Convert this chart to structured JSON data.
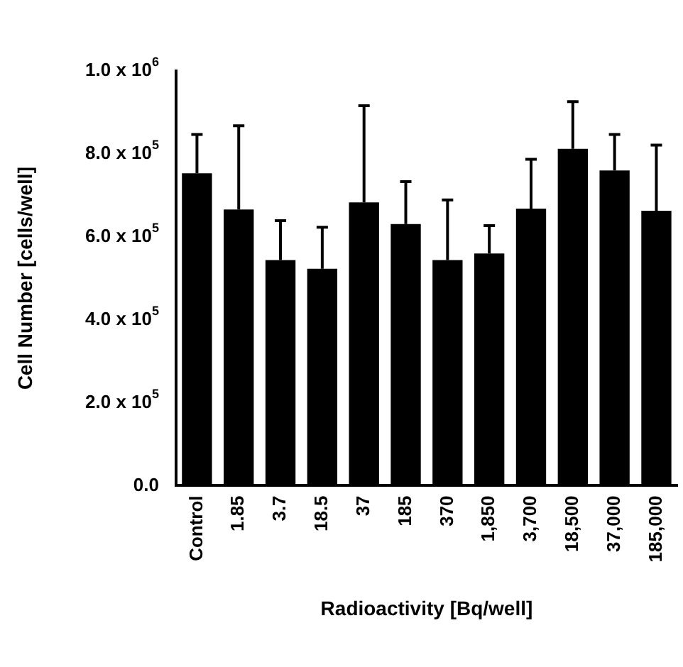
{
  "chart_data": {
    "type": "bar",
    "xlabel": "Radioactivity [Bq/well]",
    "ylabel": "Cell Number [cells/well]",
    "categories": [
      "Control",
      "1.85",
      "3.7",
      "18.5",
      "37",
      "185",
      "370",
      "1,850",
      "3,700",
      "18,500",
      "37,000",
      "185,000"
    ],
    "values": [
      753000,
      666000,
      544000,
      523000,
      683000,
      631000,
      544000,
      560000,
      668000,
      812000,
      760000,
      663000
    ],
    "errors": [
      [
        753000,
        847000
      ],
      [
        666000,
        868000
      ],
      [
        544000,
        639000
      ],
      [
        523000,
        623000
      ],
      [
        683000,
        916000
      ],
      [
        631000,
        733000
      ],
      [
        544000,
        689000
      ],
      [
        560000,
        627000
      ],
      [
        668000,
        787000
      ],
      [
        812000,
        926000
      ],
      [
        760000,
        847000
      ],
      [
        663000,
        821000
      ]
    ],
    "color": "#000000",
    "ylim": [
      0,
      1000000
    ],
    "yticks": [
      {
        "value": 0,
        "label": "0.0"
      },
      {
        "value": 200000,
        "label": "2.0 x 10$^{5}$"
      },
      {
        "value": 400000,
        "label": "4.0 x 10$^{5}$"
      },
      {
        "value": 600000,
        "label": "6.0 x 10$^{5}$"
      },
      {
        "value": 800000,
        "label": "8.0 x 10$^{5}$"
      },
      {
        "value": 1000000,
        "label": "1.0 x 10$^{6}$"
      }
    ],
    "grid": false,
    "legend": false
  }
}
